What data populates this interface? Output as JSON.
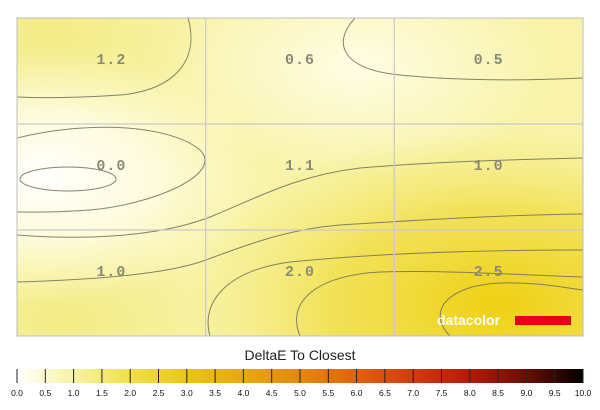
{
  "chart_data": {
    "type": "heatmap",
    "title": "",
    "rows": 3,
    "cols": 3,
    "cells": [
      [
        1.2,
        0.6,
        0.5
      ],
      [
        0.0,
        1.1,
        1.0
      ],
      [
        1.0,
        2.0,
        2.5
      ]
    ],
    "cell_labels": [
      [
        "1.2",
        "0.6",
        "0.5"
      ],
      [
        "0.0",
        "1.1",
        "1.0"
      ],
      [
        "1.0",
        "2.0",
        "2.5"
      ]
    ],
    "grid": true,
    "contours": true,
    "colorbar": {
      "title": "DeltaE To Closest",
      "range": [
        0,
        10
      ],
      "ticks": [
        "0.0",
        "0.5",
        "1.0",
        "1.5",
        "2.0",
        "2.5",
        "3.0",
        "3.5",
        "4.0",
        "4.5",
        "5.0",
        "5.5",
        "6.0",
        "6.5",
        "7.0",
        "7.5",
        "8.0",
        "8.5",
        "9.0",
        "9.5",
        "10.0"
      ],
      "stops": [
        {
          "v": 0.0,
          "c": "#ffffff"
        },
        {
          "v": 1.0,
          "c": "#f7f3a2"
        },
        {
          "v": 2.0,
          "c": "#efe04a"
        },
        {
          "v": 3.0,
          "c": "#e9c617"
        },
        {
          "v": 4.0,
          "c": "#e8a810"
        },
        {
          "v": 5.0,
          "c": "#e5880e"
        },
        {
          "v": 6.0,
          "c": "#e1610c"
        },
        {
          "v": 7.0,
          "c": "#d33a0a"
        },
        {
          "v": 8.0,
          "c": "#b41a08"
        },
        {
          "v": 9.0,
          "c": "#6a0e04"
        },
        {
          "v": 10.0,
          "c": "#000000"
        }
      ]
    }
  },
  "brand": {
    "logo_text": "datacolor",
    "bar_color": "#e3001b"
  }
}
